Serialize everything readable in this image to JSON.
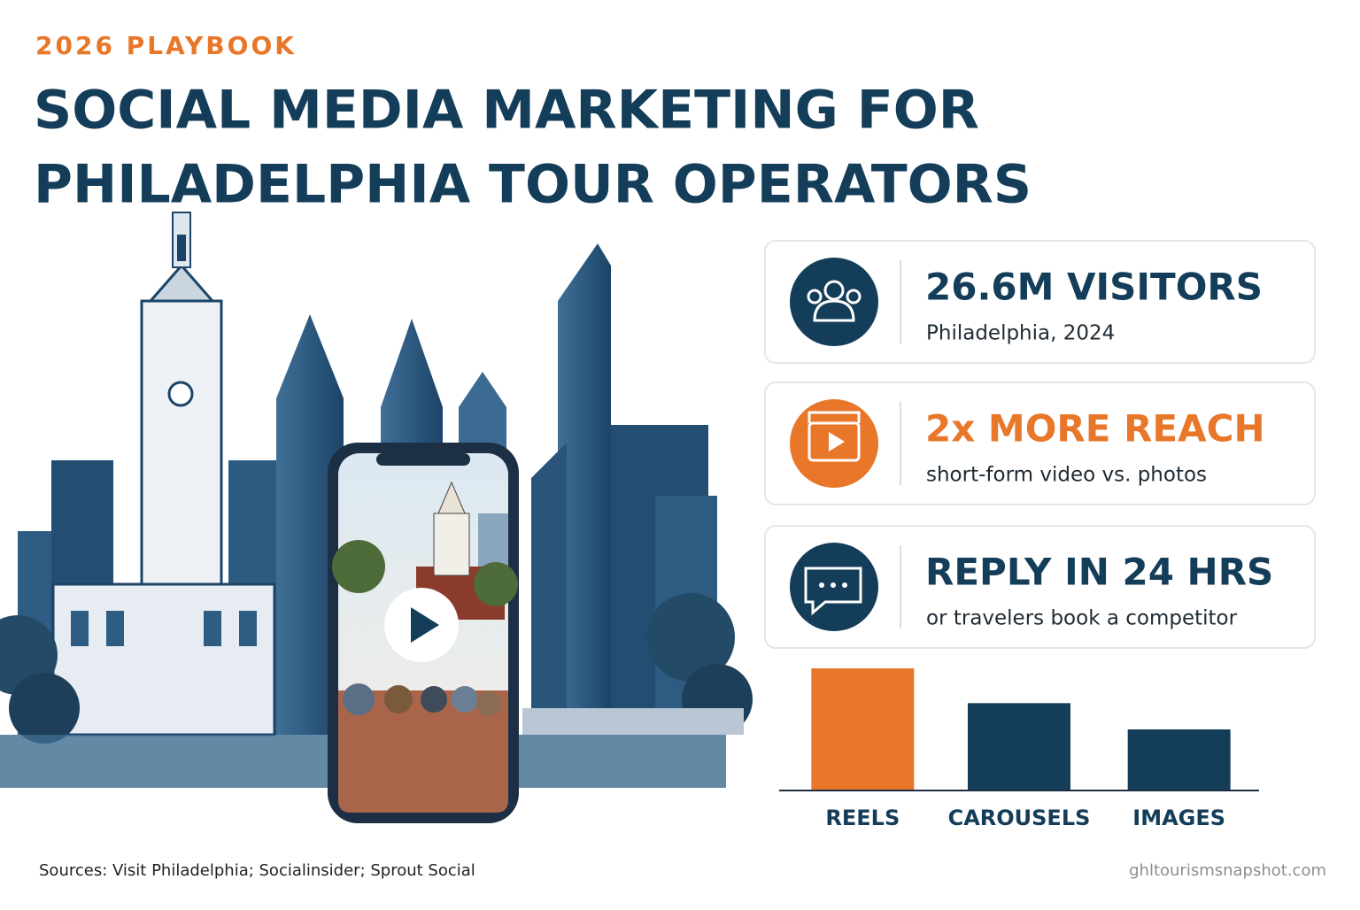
{
  "header": {
    "kicker": "2026 PLAYBOOK",
    "title_lines": [
      "SOCIAL MEDIA MARKETING FOR",
      "PHILADELPHIA TOUR OPERATORS"
    ]
  },
  "stats": [
    {
      "headline": "26.6M VISITORS",
      "detail": "Philadelphia, 2024",
      "color": "#143d59"
    },
    {
      "headline": "2x MORE REACH",
      "detail": "short-form video vs. photos",
      "color": "#e8772a"
    },
    {
      "headline": "REPLY IN 24 HRS",
      "detail": "or travelers book a competitor",
      "color": "#143d59"
    }
  ],
  "chart_data": {
    "type": "bar",
    "categories": [
      "REELS",
      "CAROUSELS",
      "IMAGES"
    ],
    "values": [
      2,
      1.43,
      1
    ],
    "colors": [
      "#e8772a",
      "#143d59",
      "#143d59"
    ],
    "ylim": [
      0,
      2
    ]
  },
  "footer": {
    "sources": "Sources: Visit Philadelphia; Socialinsider; Sprout Social",
    "site": "ghltourismsnapshot.com"
  }
}
